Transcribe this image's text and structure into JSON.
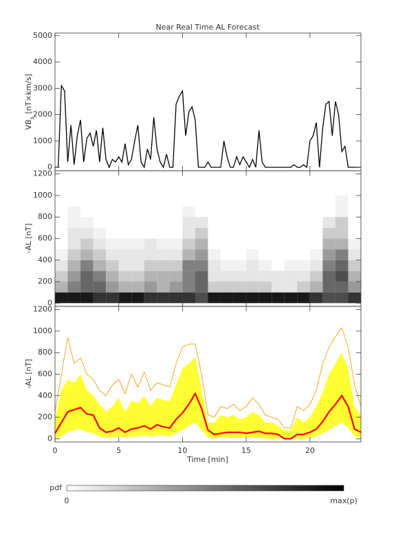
{
  "chart_data": [
    {
      "type": "line",
      "title": "Near Real Time AL Forecast",
      "ylabel": {
        "main": "VB",
        "sub": "s",
        "unit": "[nT×km/s]"
      },
      "color": "#000000",
      "xlim": [
        0,
        24
      ],
      "ylim": [
        -130,
        5100
      ],
      "yticks": [
        0,
        1000,
        2000,
        3000,
        4000,
        5000
      ],
      "x": [
        0,
        0.25,
        0.5,
        0.75,
        1,
        1.25,
        1.5,
        1.75,
        2,
        2.25,
        2.5,
        2.75,
        3,
        3.25,
        3.5,
        3.75,
        4,
        4.25,
        4.5,
        4.75,
        5,
        5.25,
        5.5,
        5.75,
        6,
        6.25,
        6.5,
        6.75,
        7,
        7.25,
        7.5,
        7.75,
        8,
        8.25,
        8.5,
        8.75,
        9,
        9.25,
        9.5,
        9.75,
        10,
        10.25,
        10.5,
        10.75,
        11,
        11.25,
        11.5,
        11.75,
        12,
        12.25,
        12.5,
        12.75,
        13,
        13.25,
        13.5,
        13.75,
        14,
        14.25,
        14.5,
        14.75,
        15,
        15.25,
        15.5,
        15.75,
        16,
        16.25,
        16.5,
        16.75,
        17,
        17.25,
        17.5,
        17.75,
        18,
        18.25,
        18.5,
        18.75,
        19,
        19.25,
        19.5,
        19.75,
        20,
        20.25,
        20.5,
        20.75,
        21,
        21.25,
        21.5,
        21.75,
        22,
        22.25,
        22.5,
        22.75,
        23,
        23.25,
        23.5,
        23.75,
        24
      ],
      "values": [
        0,
        0,
        3100,
        2900,
        200,
        1600,
        100,
        1200,
        1800,
        200,
        1100,
        1300,
        800,
        1400,
        200,
        1500,
        300,
        0,
        300,
        200,
        400,
        200,
        900,
        100,
        300,
        1000,
        1600,
        200,
        0,
        700,
        300,
        1900,
        700,
        200,
        0,
        500,
        0,
        0,
        2400,
        2700,
        2900,
        1200,
        2100,
        2300,
        1800,
        0,
        0,
        0,
        200,
        0,
        0,
        0,
        0,
        1000,
        400,
        0,
        0,
        400,
        100,
        400,
        200,
        0,
        300,
        0,
        1400,
        200,
        0,
        0,
        0,
        0,
        0,
        0,
        0,
        0,
        0,
        100,
        0,
        0,
        100,
        0,
        1000,
        1200,
        1700,
        0,
        1500,
        2400,
        2500,
        1200,
        2500,
        2000,
        600,
        800,
        0,
        0,
        0,
        0,
        0
      ]
    },
    {
      "type": "heatmap",
      "ylabel": "-AL [nT]",
      "xlim": [
        0,
        24
      ],
      "ylim": [
        -30,
        1230
      ],
      "yticks": [
        0,
        200,
        400,
        600,
        800,
        1000,
        1200
      ],
      "xbins": [
        0,
        1,
        2,
        3,
        4,
        5,
        6,
        7,
        8,
        9,
        10,
        11,
        12,
        13,
        14,
        15,
        16,
        17,
        18,
        19,
        20,
        21,
        22,
        23,
        24
      ],
      "ybins": [
        0,
        100,
        200,
        300,
        400,
        500,
        600,
        700,
        800,
        900,
        1000
      ],
      "z": [
        [
          0.9,
          0.9,
          0.9,
          0.8,
          0.8,
          0.9,
          0.9,
          0.8,
          0.8,
          0.8,
          0.8,
          0.7,
          0.9,
          0.9,
          0.9,
          0.9,
          0.9,
          0.9,
          0.9,
          0.9,
          0.8,
          0.7,
          0.7,
          0.8
        ],
        [
          0.3,
          0.5,
          0.6,
          0.6,
          0.4,
          0.3,
          0.3,
          0.4,
          0.3,
          0.4,
          0.5,
          0.6,
          0.2,
          0.2,
          0.2,
          0.2,
          0.2,
          0.1,
          0.1,
          0.2,
          0.3,
          0.6,
          0.6,
          0.4
        ],
        [
          0.2,
          0.4,
          0.6,
          0.5,
          0.3,
          0.2,
          0.2,
          0.3,
          0.3,
          0.3,
          0.5,
          0.6,
          0.1,
          0.1,
          0.1,
          0.1,
          0.1,
          0.1,
          0.1,
          0.1,
          0.2,
          0.6,
          0.7,
          0.3
        ],
        [
          0.1,
          0.3,
          0.5,
          0.3,
          0.2,
          0.1,
          0.1,
          0.2,
          0.2,
          0.2,
          0.5,
          0.5,
          0.1,
          0.05,
          0.05,
          0.1,
          0.05,
          0,
          0.05,
          0.05,
          0.1,
          0.5,
          0.6,
          0.2
        ],
        [
          0.05,
          0.2,
          0.3,
          0.2,
          0.1,
          0.1,
          0.1,
          0.1,
          0.1,
          0.1,
          0.3,
          0.4,
          0.05,
          0,
          0,
          0.05,
          0,
          0,
          0,
          0,
          0.05,
          0.4,
          0.5,
          0.1
        ],
        [
          0,
          0.1,
          0.2,
          0.1,
          0.05,
          0.05,
          0.05,
          0.1,
          0.05,
          0.05,
          0.2,
          0.3,
          0,
          0,
          0,
          0,
          0,
          0,
          0,
          0,
          0,
          0.3,
          0.3,
          0.05
        ],
        [
          0,
          0.1,
          0.1,
          0.05,
          0,
          0,
          0,
          0,
          0,
          0,
          0.1,
          0.2,
          0,
          0,
          0,
          0,
          0,
          0,
          0,
          0,
          0,
          0.2,
          0.2,
          0
        ],
        [
          0,
          0.05,
          0.05,
          0,
          0,
          0,
          0,
          0,
          0,
          0,
          0.1,
          0.1,
          0,
          0,
          0,
          0,
          0,
          0,
          0,
          0,
          0,
          0.1,
          0.2,
          0
        ],
        [
          0,
          0.05,
          0,
          0,
          0,
          0,
          0,
          0,
          0,
          0,
          0.05,
          0,
          0,
          0,
          0,
          0,
          0,
          0,
          0,
          0,
          0,
          0,
          0.05,
          0
        ],
        [
          0,
          0,
          0,
          0,
          0,
          0,
          0,
          0,
          0,
          0,
          0,
          0,
          0,
          0,
          0,
          0,
          0,
          0,
          0,
          0,
          0,
          0,
          0.05,
          0
        ]
      ]
    },
    {
      "type": "band",
      "ylabel": "-AL [nT]",
      "xlabel": "Time [min]",
      "xlim": [
        0,
        24
      ],
      "ylim": [
        -30,
        1230
      ],
      "yticks": [
        0,
        200,
        400,
        600,
        800,
        1000,
        1200
      ],
      "xticks": [
        0,
        5,
        10,
        15,
        20
      ],
      "x": [
        0,
        0.5,
        1,
        1.5,
        2,
        2.5,
        3,
        3.5,
        4,
        4.5,
        5,
        5.5,
        6,
        6.5,
        7,
        7.5,
        8,
        8.5,
        9,
        9.5,
        10,
        10.5,
        11,
        11.5,
        12,
        12.5,
        13,
        13.5,
        14,
        14.5,
        15,
        15.5,
        16,
        16.5,
        17,
        17.5,
        18,
        18.5,
        19,
        19.5,
        20,
        20.5,
        21,
        21.5,
        22,
        22.5,
        23,
        23.5,
        24
      ],
      "area_color": "#ffff33",
      "area_upper": [
        180,
        450,
        550,
        520,
        600,
        450,
        400,
        320,
        250,
        300,
        380,
        250,
        350,
        330,
        400,
        300,
        380,
        360,
        350,
        500,
        650,
        700,
        760,
        450,
        150,
        150,
        220,
        200,
        220,
        180,
        200,
        250,
        220,
        150,
        150,
        120,
        80,
        80,
        200,
        150,
        200,
        300,
        430,
        600,
        700,
        800,
        650,
        300,
        220
      ],
      "area_lower": [
        0,
        20,
        60,
        80,
        90,
        60,
        50,
        20,
        10,
        10,
        20,
        10,
        20,
        20,
        30,
        20,
        30,
        30,
        20,
        50,
        80,
        120,
        150,
        80,
        10,
        0,
        10,
        10,
        10,
        10,
        10,
        10,
        10,
        0,
        0,
        0,
        0,
        0,
        0,
        0,
        10,
        20,
        50,
        80,
        120,
        150,
        100,
        20,
        10
      ],
      "lines": [
        {
          "color": "#f5a623",
          "values": [
            250,
            600,
            940,
            700,
            750,
            600,
            550,
            450,
            400,
            500,
            550,
            420,
            600,
            480,
            620,
            450,
            520,
            500,
            480,
            700,
            850,
            880,
            880,
            600,
            220,
            200,
            300,
            280,
            320,
            260,
            300,
            380,
            320,
            220,
            200,
            180,
            100,
            100,
            300,
            260,
            320,
            450,
            700,
            850,
            950,
            1030,
            850,
            500,
            300
          ]
        },
        {
          "color": "#ff0000",
          "values": [
            50,
            150,
            250,
            270,
            290,
            230,
            220,
            100,
            60,
            70,
            100,
            60,
            90,
            100,
            120,
            90,
            130,
            110,
            100,
            180,
            240,
            320,
            420,
            280,
            80,
            40,
            50,
            60,
            60,
            60,
            50,
            60,
            70,
            50,
            50,
            40,
            0,
            0,
            40,
            40,
            60,
            90,
            160,
            250,
            320,
            400,
            300,
            90,
            60
          ]
        }
      ]
    }
  ],
  "colorbar": {
    "label": "pdf",
    "min_label": "0",
    "max_label": "max(p)"
  }
}
